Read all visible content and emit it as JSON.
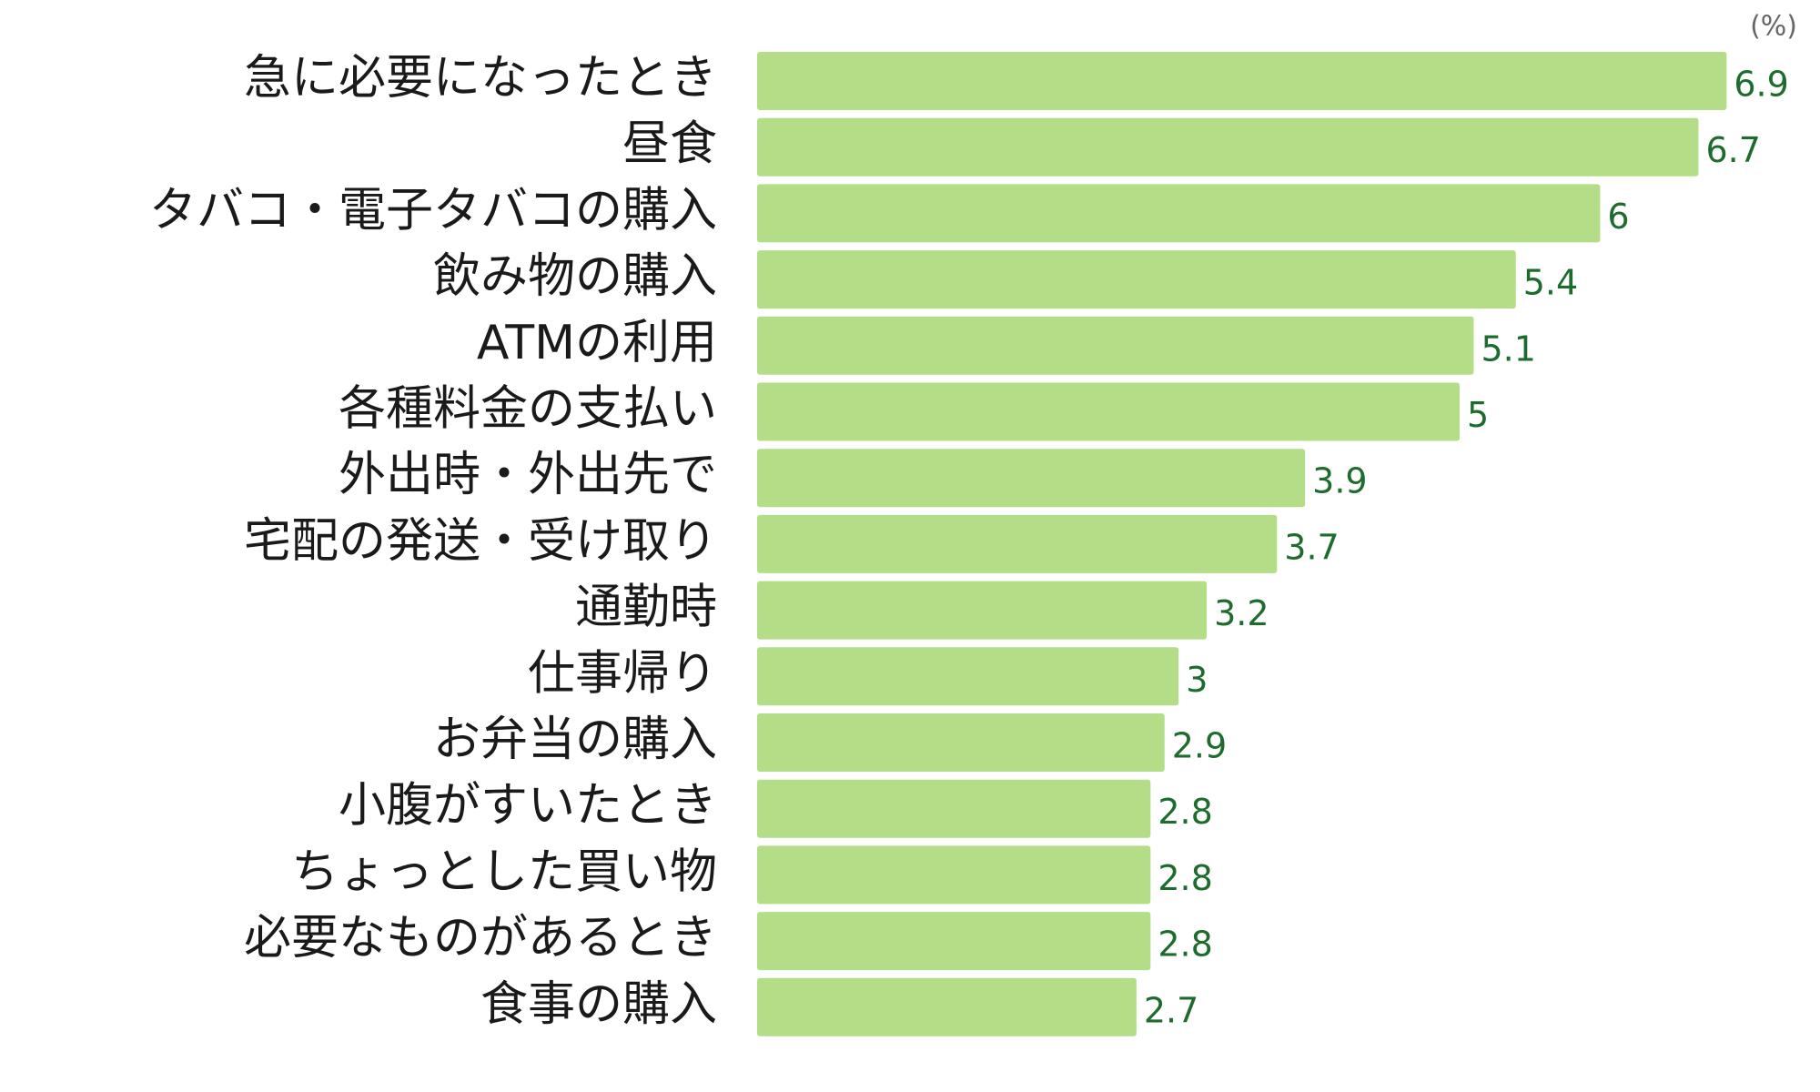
{
  "chart_data": {
    "type": "bar",
    "orientation": "horizontal",
    "unit_label": "(%)",
    "categories": [
      "急に必要になったとき",
      "昼食",
      "タバコ・電子タバコの購入",
      "飲み物の購入",
      "ATMの利用",
      "各種料金の支払い",
      "外出時・外出先で",
      "宅配の発送・受け取り",
      "通勤時",
      "仕事帰り",
      "お弁当の購入",
      "小腹がすいたとき",
      "ちょっとした買い物",
      "必要なものがあるとき",
      "食事の購入"
    ],
    "values": [
      6.9,
      6.7,
      6,
      5.4,
      5.1,
      5,
      3.9,
      3.7,
      3.2,
      3,
      2.9,
      2.8,
      2.8,
      2.8,
      2.7
    ],
    "color": "#b3de87",
    "label_color": "#1e6b2e",
    "xlim": [
      0,
      7.5
    ],
    "grid": false
  }
}
